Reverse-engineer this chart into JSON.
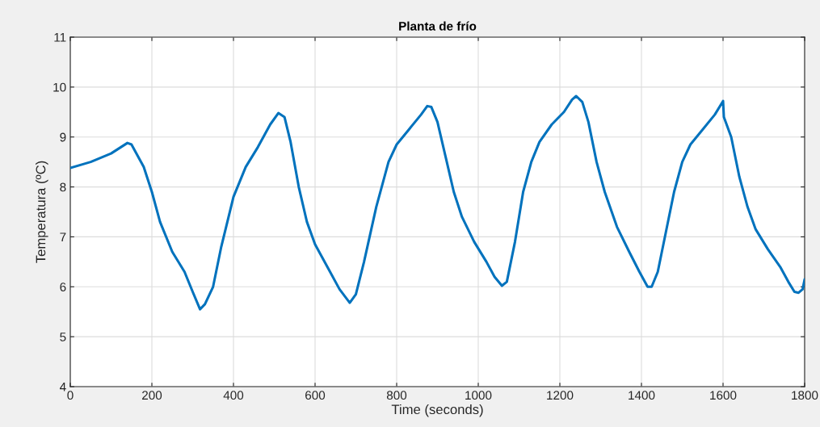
{
  "chart_data": {
    "type": "line",
    "title": "Planta de frío",
    "xlabel": "Time (seconds)",
    "ylabel": "Temperatura (ºC)",
    "xlim": [
      0,
      1800
    ],
    "xticks": [
      0,
      200,
      400,
      600,
      800,
      1000,
      1200,
      1400,
      1600,
      1800
    ],
    "ylim": [
      4,
      11
    ],
    "yticks": [
      4,
      5,
      6,
      7,
      8,
      9,
      10,
      11
    ],
    "grid": true,
    "legend": false,
    "series": [
      {
        "color": "#0072bd",
        "x": [
          0,
          50,
          100,
          140,
          150,
          180,
          200,
          220,
          250,
          280,
          300,
          318,
          330,
          350,
          370,
          400,
          430,
          460,
          490,
          510,
          525,
          540,
          560,
          580,
          600,
          630,
          660,
          685,
          700,
          720,
          750,
          780,
          800,
          830,
          860,
          875,
          885,
          900,
          920,
          940,
          960,
          990,
          1020,
          1040,
          1058,
          1070,
          1090,
          1110,
          1130,
          1150,
          1180,
          1210,
          1230,
          1240,
          1255,
          1270,
          1290,
          1310,
          1340,
          1370,
          1395,
          1415,
          1425,
          1440,
          1460,
          1480,
          1500,
          1520,
          1550,
          1580,
          1600,
          1602,
          1620,
          1640,
          1660,
          1680,
          1710,
          1740,
          1760,
          1775,
          1785,
          1795,
          1800
        ],
        "values": [
          8.38,
          8.5,
          8.67,
          8.88,
          8.85,
          8.4,
          7.9,
          7.3,
          6.7,
          6.3,
          5.9,
          5.55,
          5.65,
          6.0,
          6.8,
          7.8,
          8.4,
          8.8,
          9.25,
          9.48,
          9.4,
          8.9,
          8.0,
          7.3,
          6.85,
          6.4,
          5.95,
          5.68,
          5.85,
          6.5,
          7.6,
          8.5,
          8.85,
          9.15,
          9.45,
          9.62,
          9.6,
          9.3,
          8.6,
          7.9,
          7.4,
          6.9,
          6.5,
          6.2,
          6.02,
          6.1,
          6.9,
          7.9,
          8.5,
          8.9,
          9.25,
          9.5,
          9.75,
          9.82,
          9.7,
          9.3,
          8.5,
          7.9,
          7.2,
          6.7,
          6.3,
          6.0,
          6.0,
          6.3,
          7.1,
          7.9,
          8.5,
          8.85,
          9.15,
          9.45,
          9.72,
          9.4,
          9.0,
          8.2,
          7.6,
          7.15,
          6.75,
          6.4,
          6.1,
          5.9,
          5.88,
          5.95,
          6.15
        ]
      }
    ]
  }
}
